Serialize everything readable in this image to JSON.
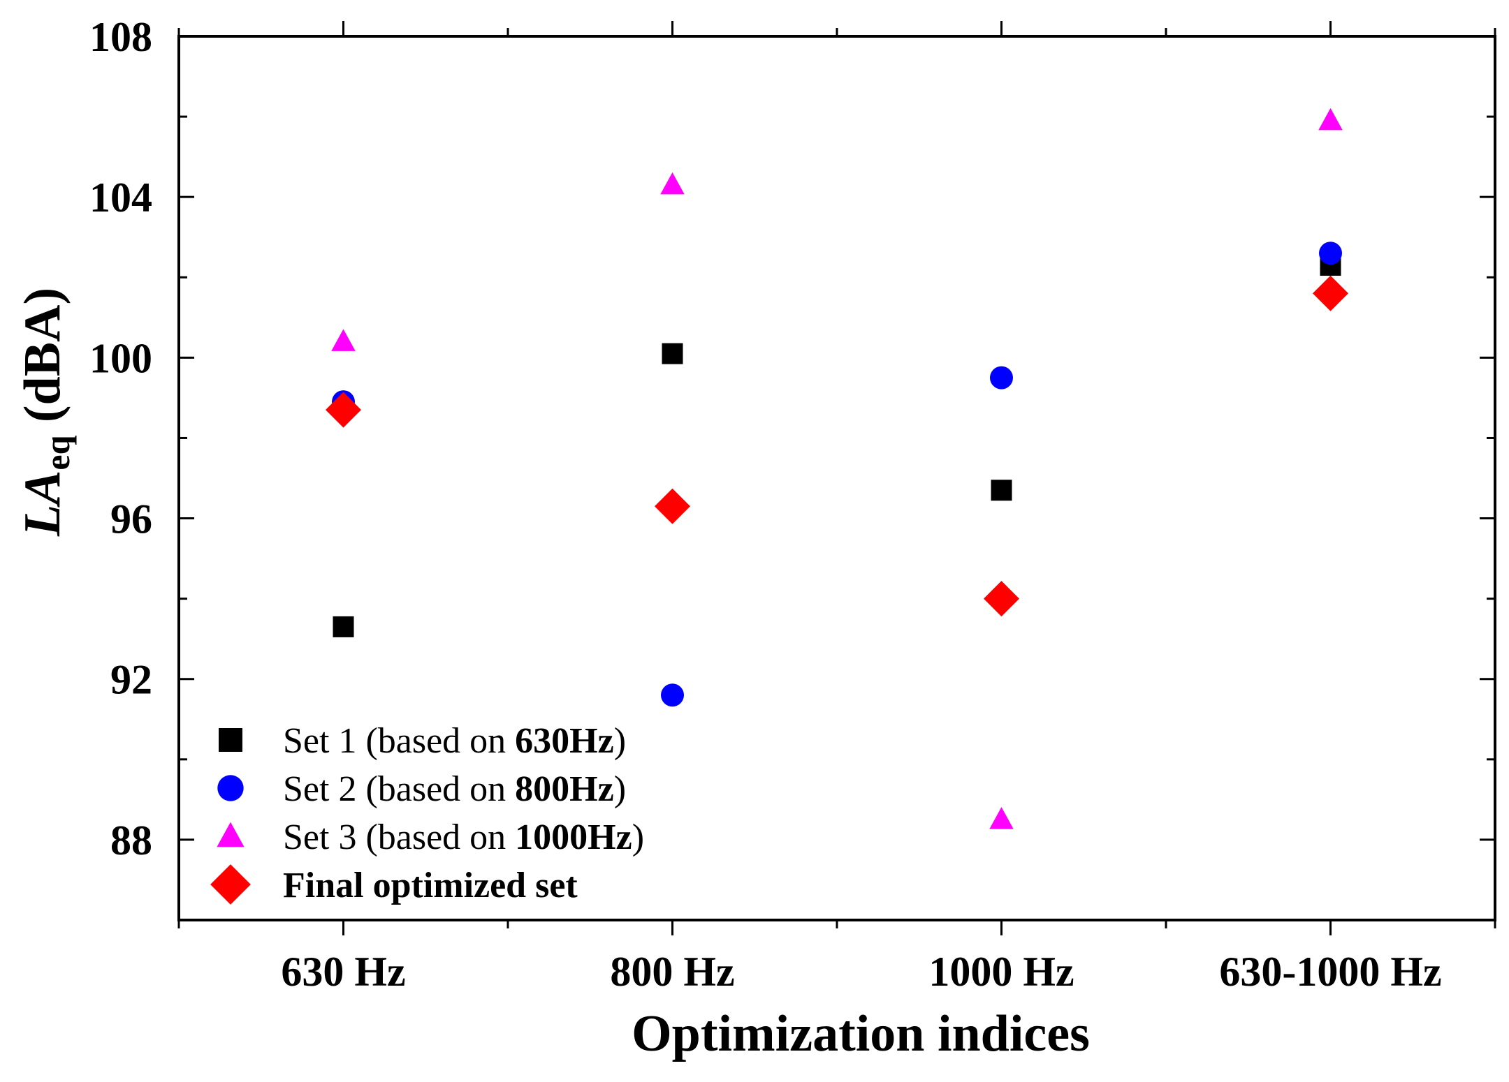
{
  "chart_data": {
    "type": "scatter",
    "categories": [
      "630 Hz",
      "800 Hz",
      "1000 Hz",
      "630-1000 Hz"
    ],
    "xlabel": "Optimization indices",
    "ylabel": {
      "italic": "LA",
      "subscript": "eq",
      "rest": " (dBA)"
    },
    "ylim": [
      86,
      108
    ],
    "yticks": [
      88,
      92,
      96,
      100,
      104,
      108
    ],
    "grid": false,
    "legend_position": "bottom-left",
    "series": [
      {
        "name": "Set 1 (based on 630Hz)",
        "label_prefix": "Set 1 (based on ",
        "label_bold": "630Hz",
        "label_suffix": ")",
        "marker": "square",
        "color": "#000000",
        "values": [
          93.3,
          100.1,
          96.7,
          102.3
        ]
      },
      {
        "name": "Set 2 (based on 800Hz)",
        "label_prefix": "Set 2 (based on ",
        "label_bold": "800Hz",
        "label_suffix": ")",
        "marker": "circle",
        "color": "#0000ff",
        "values": [
          98.9,
          91.6,
          99.5,
          102.6
        ]
      },
      {
        "name": "Set 3 (based on 1000Hz)",
        "label_prefix": "Set 3 (based on ",
        "label_bold": "1000Hz",
        "label_suffix": ")",
        "marker": "triangle",
        "color": "#ff00ff",
        "values": [
          100.4,
          104.3,
          88.5,
          105.9
        ]
      },
      {
        "name": "Final optimized set",
        "label_prefix": "",
        "label_bold": "Final optimized set",
        "label_suffix": "",
        "marker": "diamond",
        "color": "#ff0000",
        "values": [
          98.7,
          96.3,
          94.0,
          101.6
        ]
      }
    ]
  }
}
